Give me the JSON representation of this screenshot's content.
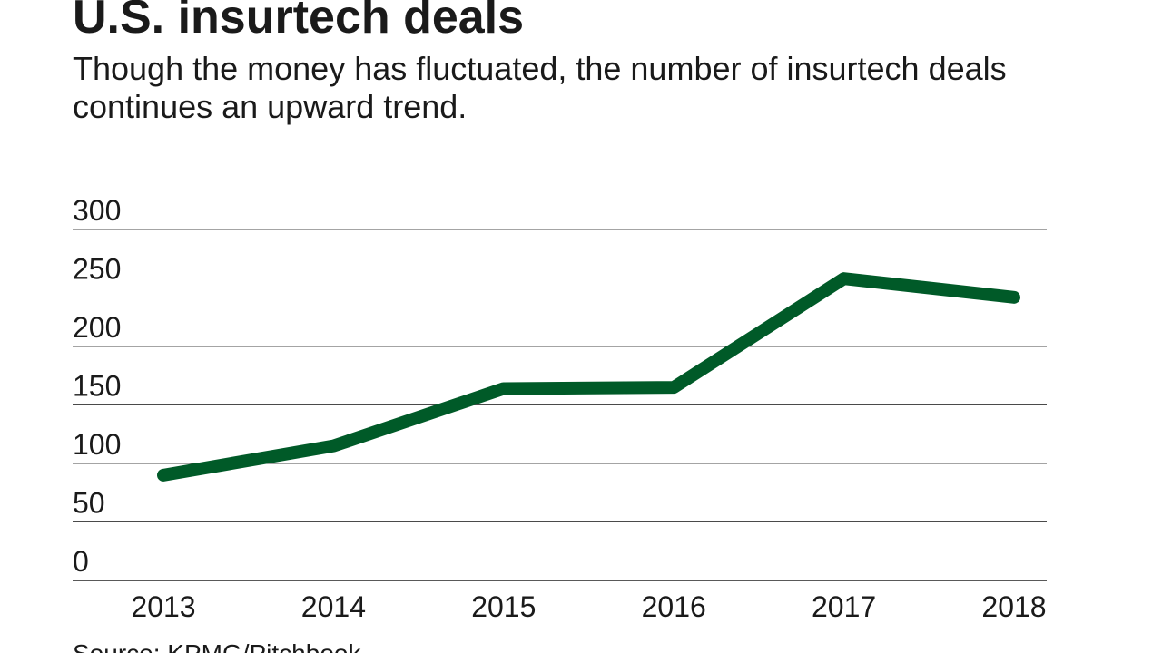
{
  "chart_data": {
    "type": "line",
    "title": "U.S. insurtech deals",
    "subtitle": "Though the money has fluctuated, the number of insurtech deals continues an upward trend.",
    "source": "Source: KPMG/Pitchbook",
    "categories": [
      "2013",
      "2014",
      "2015",
      "2016",
      "2017",
      "2018"
    ],
    "series": [
      {
        "name": "Deals",
        "color": "#005a28",
        "values": [
          90,
          115,
          164,
          165,
          258,
          242
        ]
      }
    ],
    "ylim": [
      0,
      300
    ],
    "yticks": [
      0,
      50,
      100,
      150,
      200,
      250,
      300
    ],
    "grid": true
  }
}
